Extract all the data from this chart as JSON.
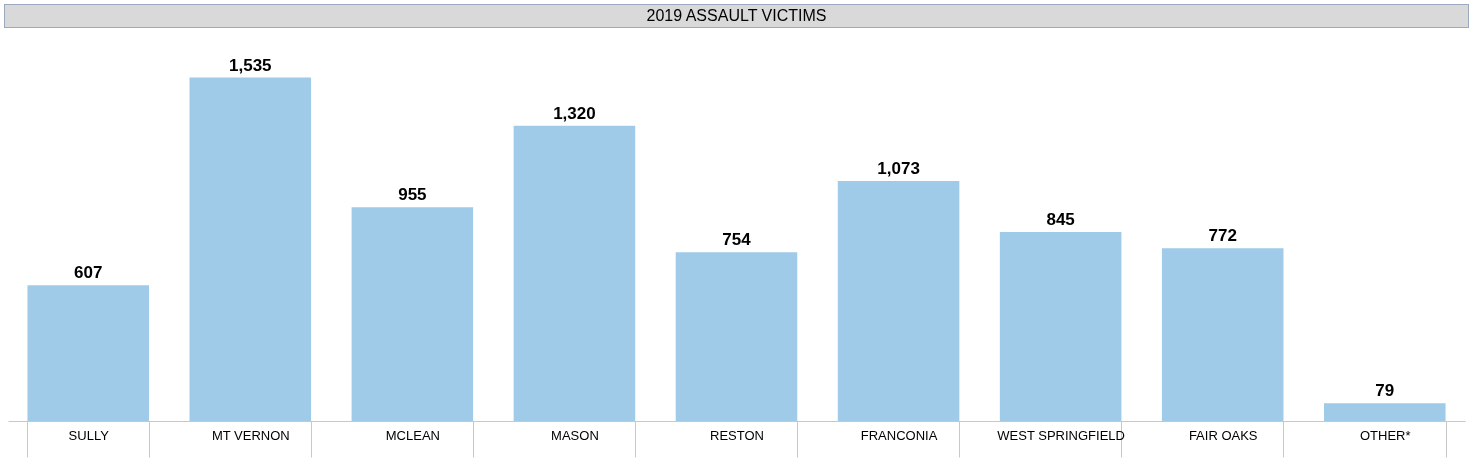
{
  "chart_data": {
    "type": "bar",
    "title": "2019 ASSAULT VICTIMS",
    "categories": [
      "SULLY",
      "MT VERNON",
      "MCLEAN",
      "MASON",
      "RESTON",
      "FRANCONIA",
      "WEST SPRINGFIELD",
      "FAIR OAKS",
      "OTHER*"
    ],
    "values": [
      607,
      1535,
      955,
      1320,
      754,
      1073,
      845,
      772,
      79
    ],
    "value_labels": [
      "607",
      "1,535",
      "955",
      "1,320",
      "754",
      "1,073",
      "845",
      "772",
      "79"
    ],
    "color": "#9fcae8"
  }
}
